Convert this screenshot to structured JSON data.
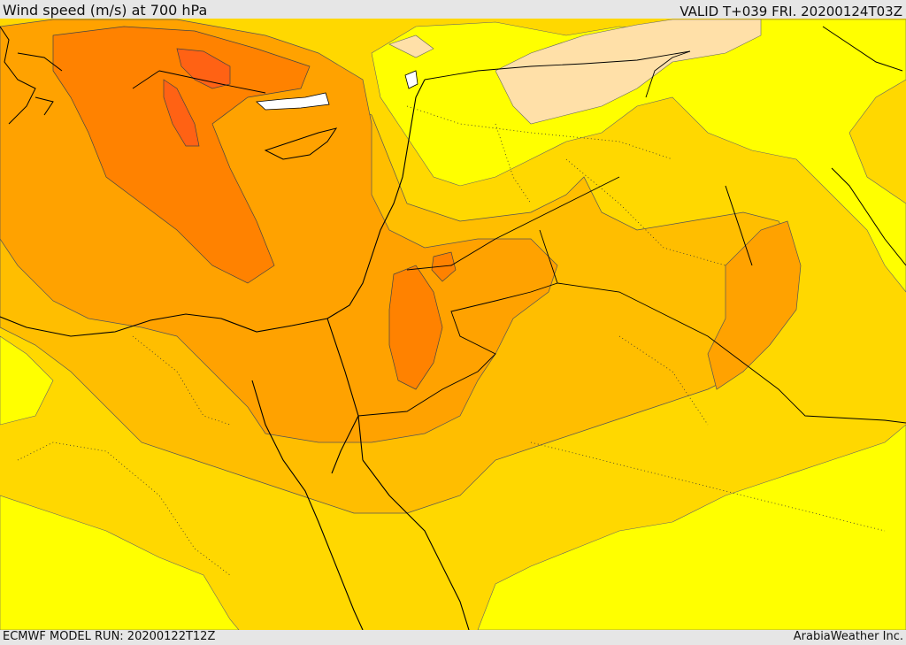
{
  "header": {
    "title": "Wind speed (m/s) at 700 hPa",
    "valid_time": "VALID T+039 FRI. 20200124T03Z"
  },
  "footer": {
    "model_run": "ECMWF MODEL RUN: 20200122T12Z",
    "credit": "ArabiaWeather Inc."
  },
  "colors": {
    "pale": "#ffe0a8",
    "yellow": "#ffff00",
    "gold": "#ffd800",
    "amber": "#ffbe00",
    "orange": "#ffa200",
    "deep_orange": "#ff8200",
    "red_orange": "#ff6214",
    "land_border": "#000000"
  }
}
